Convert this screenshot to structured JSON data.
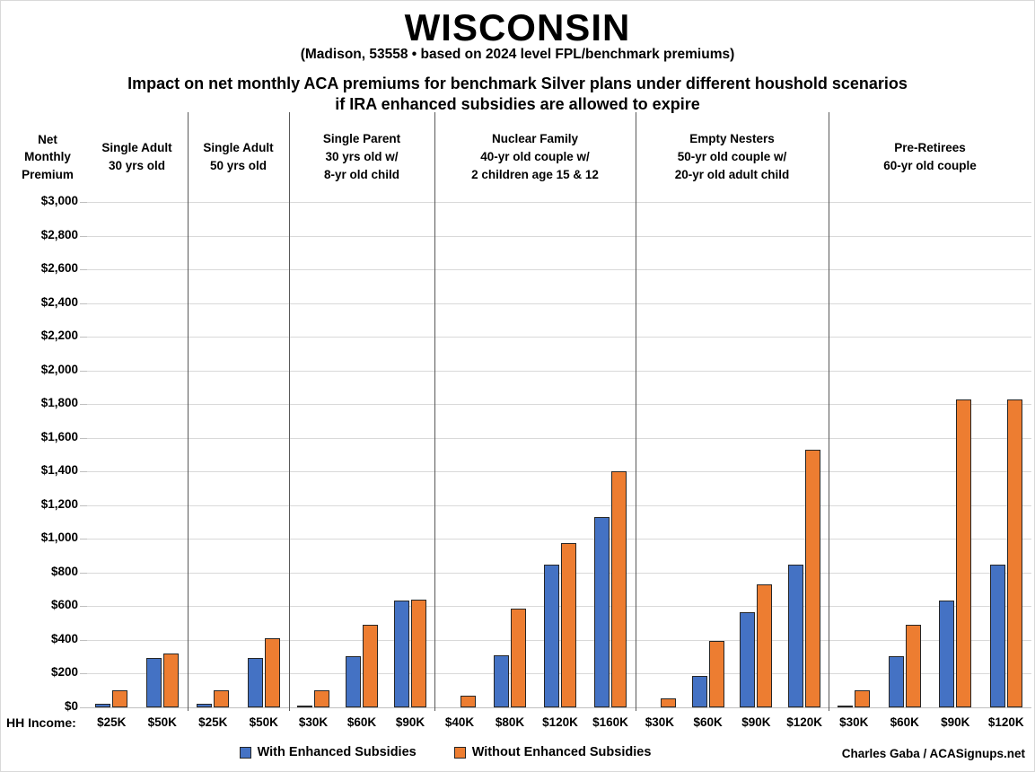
{
  "title": "WISCONSIN",
  "subtitle": "(Madison, 53558 • based on 2024 level FPL/benchmark premiums)",
  "heading": {
    "line1": "Impact on net monthly ACA premiums for benchmark Silver plans under different houshold scenarios",
    "line2": "if IRA enhanced subsidies are allowed to expire"
  },
  "y_axis_label_lines": [
    "Net",
    "Monthly",
    "Premium"
  ],
  "hh_income_label": "HH Income:",
  "legend": {
    "with_label": "With Enhanced Subsidies",
    "without_label": "Without Enhanced Subsidies"
  },
  "credit": "Charles Gaba / ACASignups.net",
  "colors": {
    "with_enhanced": "#4472C4",
    "without_enhanced": "#ED7D31",
    "bar_border": "#262626",
    "gridline": "#d9d9d9",
    "divider": "#595959"
  },
  "chart_data": {
    "type": "bar",
    "title": "WISCONSIN",
    "ylabel": "Net Monthly Premium",
    "xlabel": "HH Income",
    "ylim": [
      0,
      3000
    ],
    "ytick_step": 200,
    "ytick_prefix": "$",
    "grid": true,
    "legend_position": "bottom",
    "series_names": [
      "With Enhanced Subsidies",
      "Without Enhanced Subsidies"
    ],
    "groups": [
      {
        "label_lines": [
          "Single Adult",
          "30 yrs old"
        ],
        "categories": [
          "$25K",
          "$50K"
        ],
        "with_enhanced": [
          20,
          295
        ],
        "without_enhanced": [
          100,
          320
        ]
      },
      {
        "label_lines": [
          "Single Adult",
          "50 yrs old"
        ],
        "categories": [
          "$25K",
          "$50K"
        ],
        "with_enhanced": [
          20,
          295
        ],
        "without_enhanced": [
          100,
          410
        ]
      },
      {
        "label_lines": [
          "Single Parent",
          "30 yrs old w/",
          "8-yr old child"
        ],
        "categories": [
          "$30K",
          "$60K",
          "$90K"
        ],
        "with_enhanced": [
          5,
          305,
          635
        ],
        "without_enhanced": [
          100,
          490,
          640
        ]
      },
      {
        "label_lines": [
          "Nuclear Family",
          "40-yr old couple w/",
          "2 children age 15 & 12"
        ],
        "categories": [
          "$40K",
          "$80K",
          "$120K",
          "$160K"
        ],
        "with_enhanced": [
          0,
          310,
          845,
          1130
        ],
        "without_enhanced": [
          70,
          585,
          975,
          1400
        ]
      },
      {
        "label_lines": [
          "Empty Nesters",
          "50-yr old couple w/",
          "20-yr old adult child"
        ],
        "categories": [
          "$30K",
          "$60K",
          "$90K",
          "$120K"
        ],
        "with_enhanced": [
          0,
          185,
          565,
          845
        ],
        "without_enhanced": [
          55,
          395,
          730,
          1530
        ]
      },
      {
        "label_lines": [
          "Pre-Retirees",
          "60-yr old couple"
        ],
        "categories": [
          "$30K",
          "$60K",
          "$90K",
          "$120K"
        ],
        "with_enhanced": [
          5,
          305,
          635,
          845
        ],
        "without_enhanced": [
          100,
          490,
          1830,
          1830
        ]
      }
    ]
  }
}
